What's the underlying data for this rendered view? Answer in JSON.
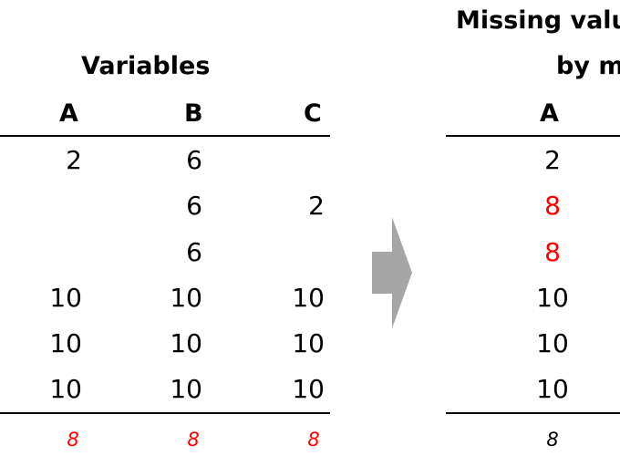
{
  "left_table": {
    "title": "Variables",
    "columns": [
      "A",
      "B",
      "C"
    ],
    "rows": [
      [
        "2",
        "6",
        ""
      ],
      [
        "",
        "6",
        "2"
      ],
      [
        "",
        "6",
        ""
      ],
      [
        "10",
        "10",
        "10"
      ],
      [
        "10",
        "10",
        "10"
      ],
      [
        "10",
        "10",
        "10"
      ]
    ],
    "means": [
      "8",
      "8",
      "8"
    ],
    "mean_color": "#ff0000"
  },
  "right_table": {
    "title_line1": "Missing valu",
    "title_line2": "by m",
    "columns": [
      "A"
    ],
    "rows": [
      "2",
      "8",
      "8",
      "10",
      "10",
      "10"
    ],
    "imputed_rows": [
      1,
      2
    ],
    "imputed_color": "#ff0000",
    "mean": "8"
  },
  "arrow": {
    "icon": "right-arrow-icon",
    "color": "#a6a6a6"
  }
}
